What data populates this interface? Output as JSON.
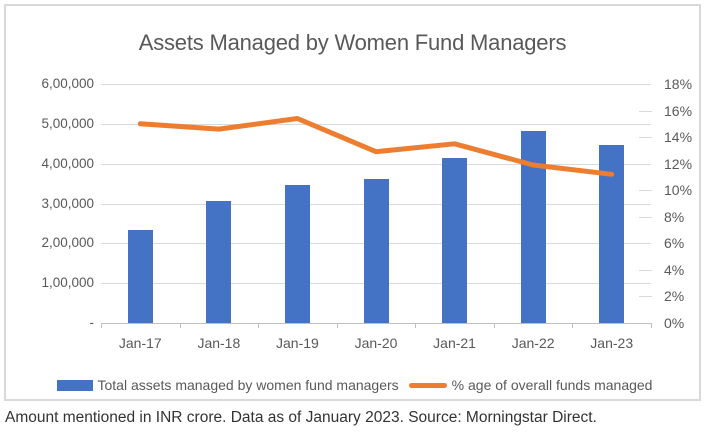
{
  "title": "Assets Managed by Women Fund Managers",
  "footnote": "Amount mentioned in INR crore. Data as of January 2023. Source: Morningstar Direct.",
  "legend": {
    "bar_label": "Total assets managed by women fund managers",
    "line_label": "% age of overall funds managed"
  },
  "colors": {
    "bar": "#4472C4",
    "line": "#ED7D31",
    "gridline": "#D9D9D9",
    "axis_line": "#BFBFBF",
    "text": "#595959",
    "frame_border": "#D9D9D9"
  },
  "chart_data": {
    "type": "bar",
    "subtype": "combo-bar-line-dual-axis",
    "title": "Assets Managed by Women Fund Managers",
    "categories": [
      "Jan-17",
      "Jan-18",
      "Jan-19",
      "Jan-20",
      "Jan-21",
      "Jan-22",
      "Jan-23"
    ],
    "series": [
      {
        "name": "Total assets managed by women fund managers",
        "type": "bar",
        "axis": "left",
        "color": "#4472C4",
        "values": [
          233000,
          306000,
          346000,
          362000,
          415000,
          482000,
          446000
        ]
      },
      {
        "name": "% age of overall funds managed",
        "type": "line",
        "axis": "right",
        "color": "#ED7D31",
        "values": [
          15.0,
          14.6,
          15.4,
          12.9,
          13.5,
          11.9,
          11.2
        ]
      }
    ],
    "left_axis": {
      "min": 0,
      "max": 600000,
      "step": 100000,
      "tick_labels": [
        "-",
        "1,00,000",
        "2,00,000",
        "3,00,000",
        "4,00,000",
        "5,00,000",
        "6,00,000"
      ]
    },
    "right_axis": {
      "min": 0,
      "max": 18,
      "step": 2,
      "tick_labels": [
        "0%",
        "2%",
        "4%",
        "6%",
        "8%",
        "10%",
        "12%",
        "14%",
        "16%",
        "18%"
      ]
    },
    "grid": true,
    "legend_position": "bottom"
  }
}
